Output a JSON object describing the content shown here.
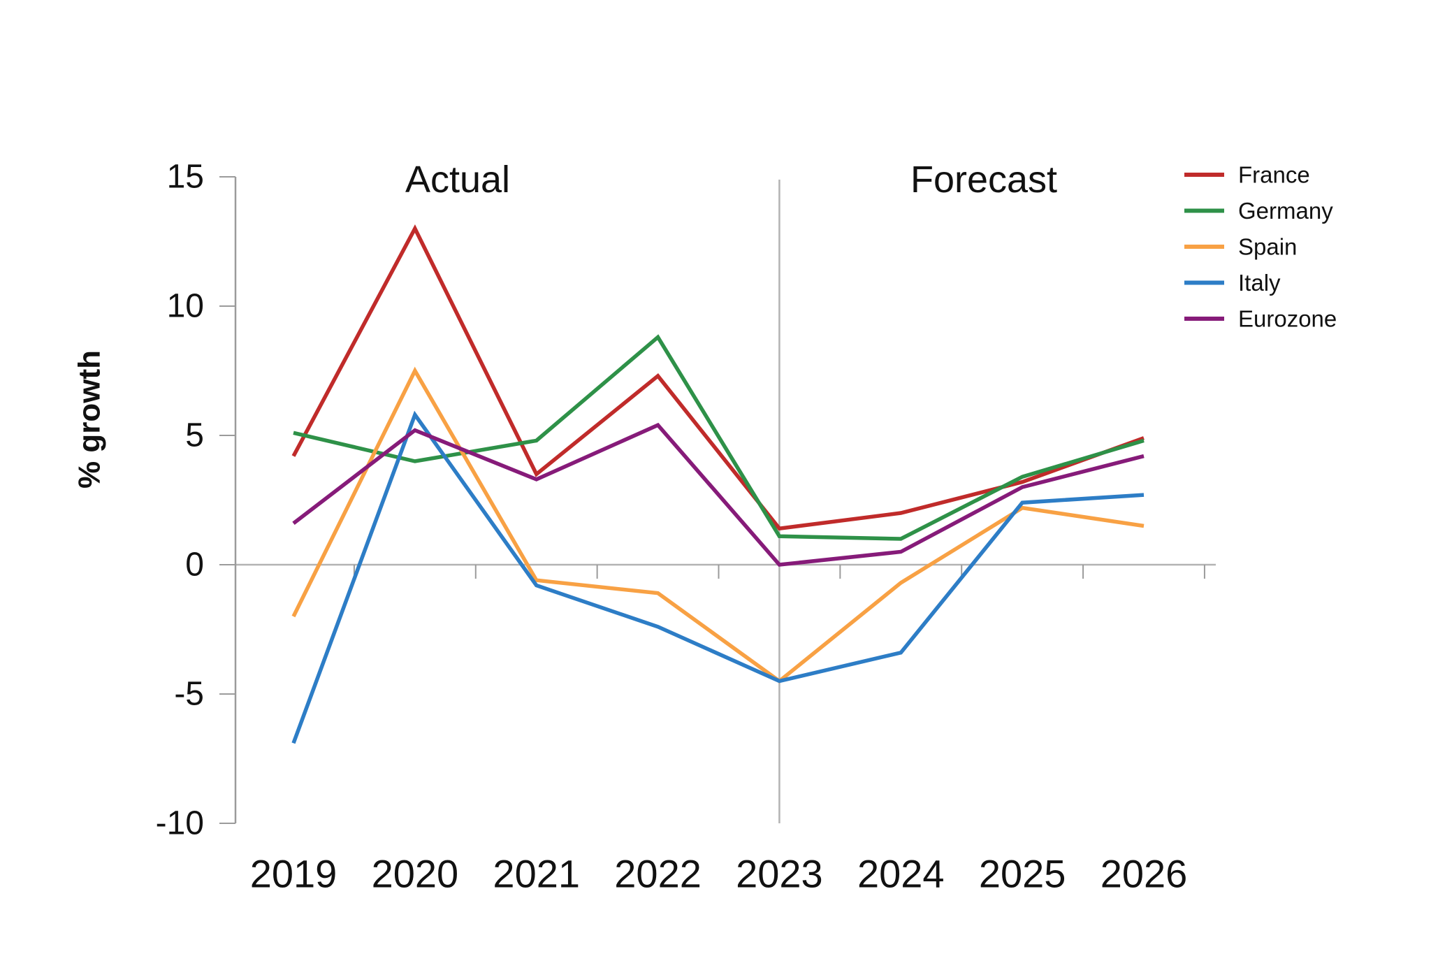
{
  "chart_data": {
    "type": "line",
    "title": "",
    "ylabel": "% growth",
    "xlabel": "",
    "ylim": [
      -10,
      15
    ],
    "yticks": [
      15,
      10,
      5,
      0,
      -5,
      -10
    ],
    "grid": "zero-line-only",
    "legend_position": "top-right",
    "divider_after_category": "2023",
    "section_labels": {
      "left": "Actual",
      "right": "Forecast"
    },
    "categories": [
      "2019",
      "2020",
      "2021",
      "2022",
      "2023",
      "2024",
      "2025",
      "2026"
    ],
    "series": [
      {
        "name": "France",
        "color": "#c02b2a",
        "values": [
          4.2,
          13.0,
          3.5,
          7.3,
          1.4,
          2.0,
          3.2,
          4.9
        ]
      },
      {
        "name": "Germany",
        "color": "#2e9148",
        "values": [
          5.1,
          4.0,
          4.8,
          8.8,
          1.1,
          1.0,
          3.4,
          4.8
        ]
      },
      {
        "name": "Spain",
        "color": "#f8a144",
        "values": [
          -2.0,
          7.5,
          -0.6,
          -1.1,
          -4.5,
          -0.7,
          2.2,
          1.5
        ]
      },
      {
        "name": "Italy",
        "color": "#2d7dc6",
        "values": [
          -6.9,
          5.8,
          -0.8,
          -2.4,
          -4.5,
          -3.4,
          2.4,
          2.7
        ]
      },
      {
        "name": "Eurozone",
        "color": "#861b79",
        "values": [
          1.6,
          5.2,
          3.3,
          5.4,
          0.0,
          0.5,
          3.0,
          4.2
        ]
      }
    ],
    "axis_colors": {
      "axis": "#9b9b9b",
      "zero_line": "#b3b3b3",
      "divider": "#b3b3b3",
      "text": "#111111"
    }
  }
}
